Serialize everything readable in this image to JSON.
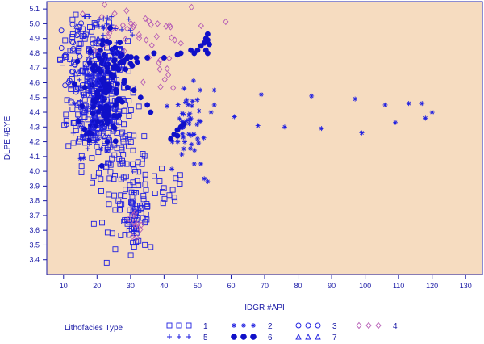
{
  "colors": {
    "plot_bg": "#f6dcc0",
    "axis": "#1a1aa6",
    "marker": "#2020e0",
    "marker_dark": "#1010c8",
    "purple": "#b45ab4"
  },
  "chart_data": {
    "type": "scatter",
    "xlabel": "IDGR #API",
    "ylabel": "DLPE #BYE",
    "xlim": [
      5,
      135
    ],
    "ylim": [
      3.3,
      5.15
    ],
    "xticks": [
      10,
      20,
      30,
      40,
      50,
      60,
      70,
      80,
      90,
      100,
      110,
      120,
      130
    ],
    "yticks": [
      3.4,
      3.5,
      3.6,
      3.7,
      3.8,
      3.9,
      4.0,
      4.1,
      4.2,
      4.3,
      4.4,
      4.5,
      4.6,
      4.7,
      4.8,
      4.9,
      5.0,
      5.1
    ],
    "grid": false,
    "legend": {
      "title": "Lithofacies Type",
      "position": "bottom"
    },
    "series": [
      {
        "name": "1",
        "marker": "square",
        "clusters": [
          {
            "cx": 20,
            "cy": 4.5,
            "sx": 4.5,
            "sy": 0.22,
            "n": 240
          },
          {
            "cx": 27,
            "cy": 4.05,
            "sx": 4,
            "sy": 0.22,
            "n": 90
          },
          {
            "cx": 32,
            "cy": 3.75,
            "sx": 2.5,
            "sy": 0.15,
            "n": 50
          },
          {
            "cx": 40,
            "cy": 3.85,
            "sx": 3,
            "sy": 0.08,
            "n": 15
          },
          {
            "cx": 31,
            "cy": 3.55,
            "sx": 1,
            "sy": 0.08,
            "n": 12
          },
          {
            "cx": 15,
            "cy": 4.85,
            "sx": 3,
            "sy": 0.1,
            "n": 25
          }
        ]
      },
      {
        "name": "2",
        "marker": "asterisk",
        "points": [
          [
            55,
            4.55
          ],
          [
            55,
            4.45
          ],
          [
            61,
            4.37
          ],
          [
            68,
            4.31
          ],
          [
            69,
            4.52
          ],
          [
            76,
            4.3
          ],
          [
            84,
            4.51
          ],
          [
            87,
            4.29
          ],
          [
            97,
            4.49
          ],
          [
            99,
            4.26
          ],
          [
            106,
            4.45
          ],
          [
            109,
            4.33
          ],
          [
            113,
            4.46
          ],
          [
            117,
            4.46
          ],
          [
            118,
            4.36
          ],
          [
            120,
            4.4
          ],
          [
            46,
            4.56
          ],
          [
            50,
            4.22
          ],
          [
            49,
            4.05
          ],
          [
            51,
            4.05
          ],
          [
            52,
            3.95
          ],
          [
            53,
            3.93
          ]
        ],
        "clusters": [
          {
            "cx": 48,
            "cy": 4.32,
            "sx": 2.5,
            "sy": 0.12,
            "n": 45
          },
          {
            "cx": 20,
            "cy": 4.5,
            "sx": 3,
            "sy": 0.2,
            "n": 30
          }
        ]
      },
      {
        "name": "3",
        "marker": "circle",
        "clusters": [
          {
            "cx": 12,
            "cy": 4.72,
            "sx": 2,
            "sy": 0.1,
            "n": 20
          },
          {
            "cx": 14,
            "cy": 4.95,
            "sx": 2,
            "sy": 0.05,
            "n": 8
          }
        ]
      },
      {
        "name": "4",
        "marker": "diamond",
        "clusters": [
          {
            "cx": 30,
            "cy": 4.95,
            "sx": 9,
            "sy": 0.08,
            "n": 40
          },
          {
            "cx": 31,
            "cy": 3.62,
            "sx": 1.5,
            "sy": 0.06,
            "n": 10
          },
          {
            "cx": 40,
            "cy": 4.6,
            "sx": 3,
            "sy": 0.1,
            "n": 10
          }
        ]
      },
      {
        "name": "5",
        "marker": "plus",
        "clusters": [
          {
            "cx": 23,
            "cy": 4.98,
            "sx": 4,
            "sy": 0.06,
            "n": 20
          },
          {
            "cx": 18,
            "cy": 4.45,
            "sx": 3,
            "sy": 0.2,
            "n": 30
          }
        ]
      },
      {
        "name": "6",
        "marker": "filled-circle",
        "points": [
          [
            27,
            4.78
          ],
          [
            28,
            4.75
          ],
          [
            30,
            4.73
          ],
          [
            32,
            4.74
          ],
          [
            35,
            4.77
          ],
          [
            37,
            4.8
          ],
          [
            40,
            4.77
          ],
          [
            44,
            4.79
          ],
          [
            45,
            4.8
          ],
          [
            48,
            4.82
          ],
          [
            49,
            4.8
          ],
          [
            50,
            4.82
          ],
          [
            51,
            4.85
          ],
          [
            52,
            4.87
          ],
          [
            52.5,
            4.9
          ],
          [
            53,
            4.93
          ],
          [
            52.5,
            4.82
          ],
          [
            53,
            4.8
          ],
          [
            53.5,
            4.86
          ],
          [
            53,
            4.89
          ],
          [
            21,
            4.82
          ],
          [
            23,
            4.88
          ],
          [
            22,
            4.75
          ],
          [
            25,
            4.8
          ],
          [
            26,
            4.7
          ],
          [
            28,
            4.6
          ],
          [
            31,
            4.55
          ],
          [
            33,
            4.5
          ],
          [
            35,
            4.45
          ],
          [
            36,
            4.4
          ],
          [
            42,
            4.22
          ],
          [
            43,
            4.25
          ],
          [
            44,
            4.28
          ],
          [
            45,
            4.3
          ],
          [
            46,
            4.32
          ],
          [
            44,
            4.24
          ]
        ],
        "clusters": [
          {
            "cx": 22,
            "cy": 4.55,
            "sx": 3,
            "sy": 0.18,
            "n": 120
          },
          {
            "cx": 27,
            "cy": 4.75,
            "sx": 2,
            "sy": 0.05,
            "n": 12
          }
        ]
      },
      {
        "name": "7",
        "marker": "triangle",
        "clusters": [
          {
            "cx": 19,
            "cy": 4.6,
            "sx": 3,
            "sy": 0.2,
            "n": 25
          }
        ]
      }
    ]
  }
}
